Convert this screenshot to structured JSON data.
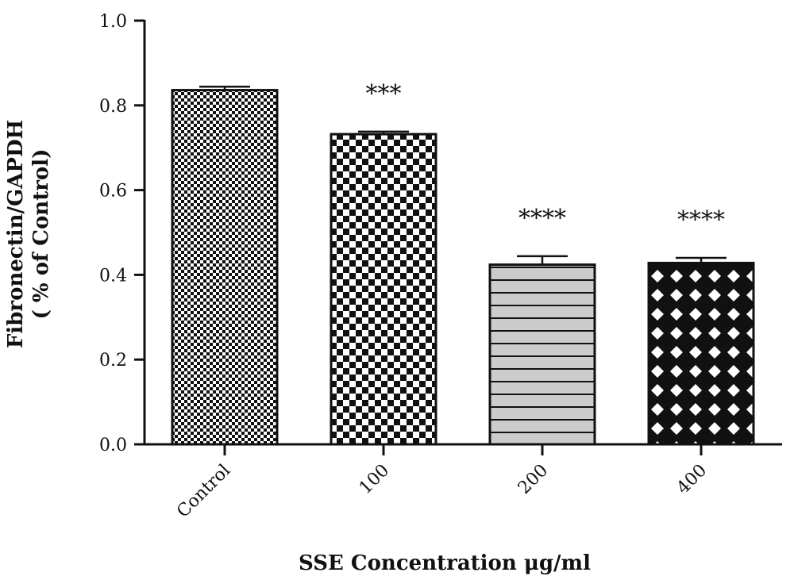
{
  "chart_data": {
    "type": "bar",
    "title": "",
    "xlabel": "SSE Concentration μg/ml",
    "ylabel_lines": [
      "Fibronectin/GAPDH",
      "( % of Control)"
    ],
    "ylim": [
      0,
      1.0
    ],
    "yticks": [
      0.0,
      0.2,
      0.4,
      0.6,
      0.8,
      1.0
    ],
    "ytick_labels": [
      "0.0",
      "0.2",
      "0.4",
      "0.6",
      "0.8",
      "1.0"
    ],
    "categories": [
      "Control",
      "100",
      "200",
      "400"
    ],
    "values": [
      0.836,
      0.732,
      0.424,
      0.428
    ],
    "errors": [
      0.008,
      0.006,
      0.02,
      0.012
    ],
    "significance": [
      "",
      "***",
      "****",
      "****"
    ],
    "bar_patterns": [
      "fine-checker",
      "coarse-checker",
      "horizontal-stripes-gray",
      "diamond-lattice"
    ],
    "grid": false,
    "legend": "none",
    "colors": {
      "ink": "#111111",
      "gray_fill": "#cccccc",
      "background": "#ffffff"
    }
  }
}
